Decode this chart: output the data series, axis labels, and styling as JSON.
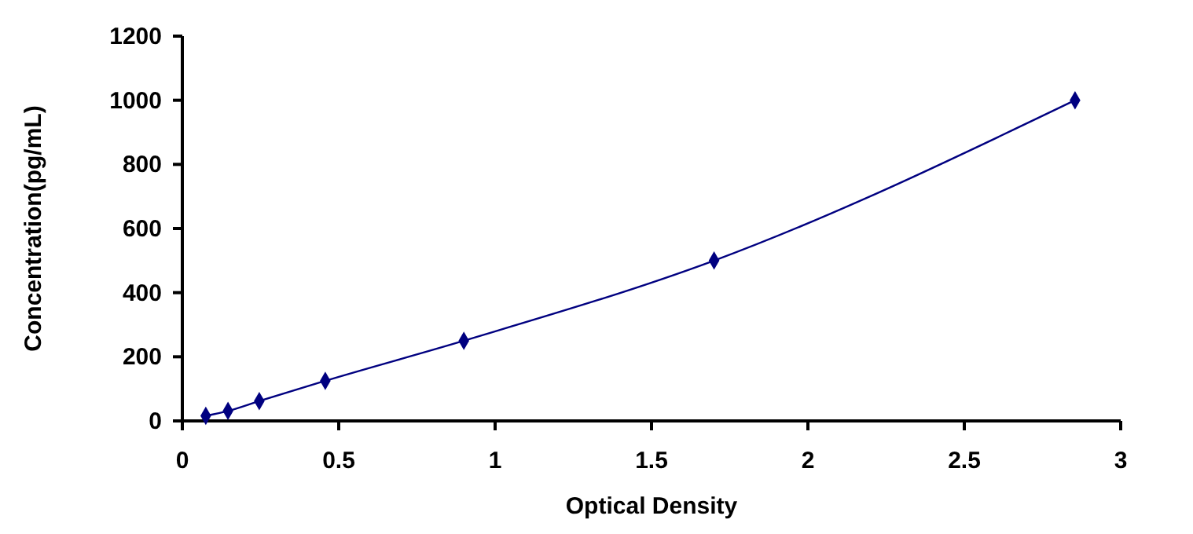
{
  "chart_data": {
    "type": "line",
    "xlabel": "Optical Density",
    "ylabel": "Concentration(pg/mL)",
    "x": [
      0.075,
      0.146,
      0.246,
      0.457,
      0.9,
      1.7,
      2.854
    ],
    "series": [
      {
        "color": "#000080",
        "values": [
          16,
          31,
          62,
          125,
          250,
          500,
          1000
        ]
      }
    ],
    "xlim": [
      0,
      3
    ],
    "xticks": [
      0,
      0.5,
      1,
      1.5,
      2,
      2.5,
      3
    ],
    "ylim": [
      0,
      1200
    ],
    "yticks": [
      0,
      200,
      400,
      600,
      800,
      1000,
      1200
    ],
    "marker": "diamond",
    "line_style": "solid"
  }
}
